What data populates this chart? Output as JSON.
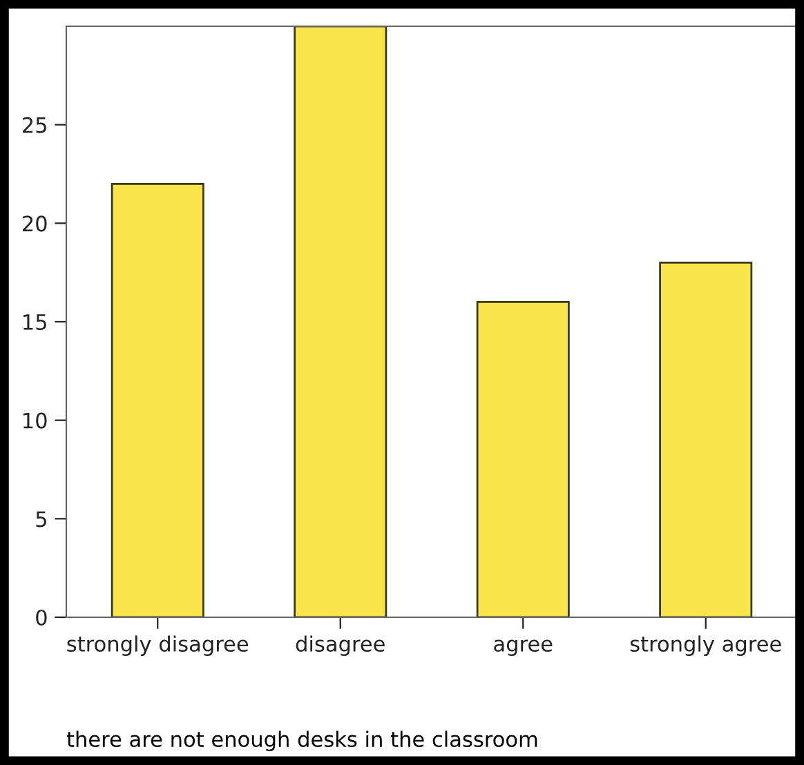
{
  "chart_data": {
    "type": "bar",
    "xlabel": "there are not enough desks in the classroom",
    "categories": [
      "strongly disagree",
      "disagree",
      "agree",
      "strongly agree"
    ],
    "values": [
      22,
      30,
      16,
      18
    ],
    "color": "#fae64a",
    "ylim": [
      0,
      30
    ],
    "yticks": [
      0,
      5,
      10,
      15,
      20,
      25
    ],
    "grid": false,
    "legend": false
  }
}
